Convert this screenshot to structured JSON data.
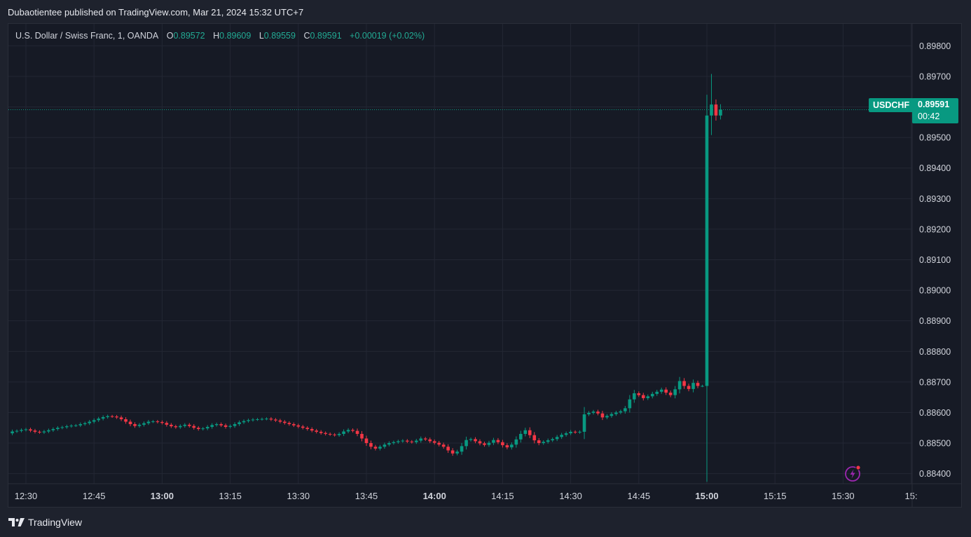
{
  "header": {
    "published": "Dubaotientee published on TradingView.com, Mar 21, 2024 15:32 UTC+7"
  },
  "legend": {
    "symbol": "U.S. Dollar / Swiss Franc, 1, OANDA",
    "o_label": "O",
    "o_value": "0.89572",
    "h_label": "H",
    "h_value": "0.89609",
    "l_label": "L",
    "l_value": "0.89559",
    "c_label": "C",
    "c_value": "0.89591",
    "change": "+0.00019 (+0.02%)"
  },
  "price_tag": {
    "symbol": "USDCHF",
    "price": "0.89591",
    "countdown": "00:42"
  },
  "footer": {
    "brand": "TradingView"
  },
  "colors": {
    "up": "#089981",
    "down": "#f23645",
    "background": "#161a25",
    "grid": "#232734",
    "text": "#d1d4dc"
  },
  "icons": {
    "flash": "lightning-bolt-icon",
    "logo": "tradingview-logo-icon"
  },
  "chart_data": {
    "type": "candlestick",
    "interval_minutes": 1,
    "x_tick_labels": [
      {
        "label": "12:30",
        "bold": false
      },
      {
        "label": "12:45",
        "bold": false
      },
      {
        "label": "13:00",
        "bold": true
      },
      {
        "label": "13:15",
        "bold": false
      },
      {
        "label": "13:30",
        "bold": false
      },
      {
        "label": "13:45",
        "bold": false
      },
      {
        "label": "14:00",
        "bold": true
      },
      {
        "label": "14:15",
        "bold": false
      },
      {
        "label": "14:30",
        "bold": false
      },
      {
        "label": "14:45",
        "bold": false
      },
      {
        "label": "15:00",
        "bold": true
      },
      {
        "label": "15:15",
        "bold": false
      },
      {
        "label": "15:30",
        "bold": false
      },
      {
        "label": "15:",
        "bold": false
      }
    ],
    "y_tick_labels": [
      "0.89800",
      "0.89700",
      "0.89600",
      "0.89500",
      "0.89400",
      "0.89300",
      "0.89200",
      "0.89100",
      "0.89000",
      "0.88900",
      "0.88800",
      "0.88700",
      "0.88600",
      "0.88500",
      "0.88400"
    ],
    "ylim": [
      0.88367,
      0.89872
    ],
    "last_price": 0.89591,
    "close_series": [
      0.88538,
      0.8854,
      0.88543,
      0.88545,
      0.88541,
      0.88537,
      0.88535,
      0.88538,
      0.88542,
      0.88546,
      0.8855,
      0.88552,
      0.88555,
      0.88557,
      0.88558,
      0.88562,
      0.88565,
      0.8857,
      0.88575,
      0.8858,
      0.88585,
      0.88588,
      0.88587,
      0.88584,
      0.88578,
      0.8857,
      0.88562,
      0.88556,
      0.8856,
      0.88565,
      0.8857,
      0.88571,
      0.88569,
      0.88566,
      0.8856,
      0.88555,
      0.88552,
      0.88556,
      0.8856,
      0.88556,
      0.8855,
      0.88546,
      0.88548,
      0.88553,
      0.88559,
      0.88562,
      0.88558,
      0.88553,
      0.88556,
      0.88562,
      0.88568,
      0.88572,
      0.88575,
      0.88577,
      0.88578,
      0.88579,
      0.8858,
      0.88577,
      0.88574,
      0.8857,
      0.88566,
      0.88562,
      0.88558,
      0.88554,
      0.8855,
      0.88546,
      0.88541,
      0.88537,
      0.88533,
      0.8853,
      0.88528,
      0.88526,
      0.8853,
      0.88538,
      0.88543,
      0.8854,
      0.8853,
      0.88515,
      0.885,
      0.88488,
      0.88482,
      0.88488,
      0.88495,
      0.885,
      0.88503,
      0.88506,
      0.88508,
      0.88505,
      0.88503,
      0.88508,
      0.88515,
      0.88512,
      0.88506,
      0.88501,
      0.88495,
      0.88488,
      0.88476,
      0.88466,
      0.88472,
      0.8849,
      0.8851,
      0.88513,
      0.88506,
      0.88499,
      0.88494,
      0.88501,
      0.8851,
      0.88503,
      0.88493,
      0.88486,
      0.88495,
      0.88512,
      0.8853,
      0.88542,
      0.88526,
      0.88509,
      0.885,
      0.88504,
      0.88509,
      0.88513,
      0.8852,
      0.88527,
      0.88532,
      0.88537,
      0.88535,
      0.88537,
      0.88594,
      0.88599,
      0.88603,
      0.88597,
      0.88584,
      0.88589,
      0.88595,
      0.886,
      0.88604,
      0.88614,
      0.88643,
      0.88663,
      0.88657,
      0.88647,
      0.88653,
      0.88661,
      0.88668,
      0.88675,
      0.88665,
      0.88657,
      0.88676,
      0.88703,
      0.88687,
      0.88677,
      0.88697,
      0.88687,
      0.88687,
      0.89572,
      0.89608,
      0.89572,
      0.89591
    ]
  }
}
